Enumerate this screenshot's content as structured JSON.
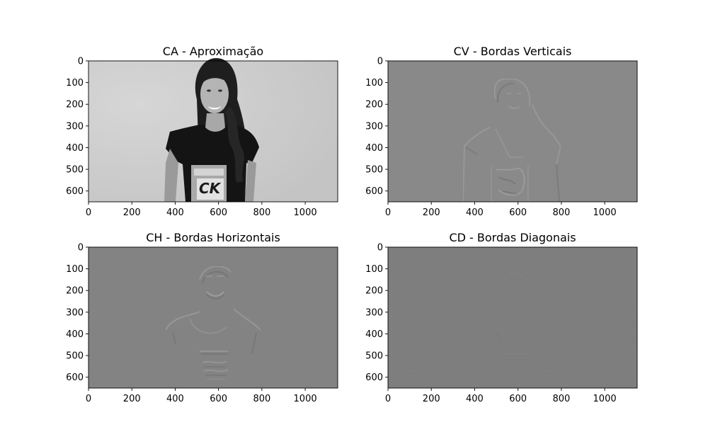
{
  "chart_data": [
    {
      "type": "heatmap",
      "title": "CA - Aproximação",
      "xlim": [
        0,
        1150
      ],
      "ylim": [
        0,
        650
      ],
      "y_inverted": true,
      "x_ticks": [
        0,
        200,
        400,
        600,
        800,
        1000
      ],
      "y_ticks": [
        0,
        100,
        200,
        300,
        400,
        500,
        600
      ],
      "colormap": "gray",
      "background_color": "#c8c8c8",
      "content": "grayscale photo of a smiling woman with long dark curly hair wearing a black t-shirt with a printed graphic, light grey background"
    },
    {
      "type": "heatmap",
      "title": "CV - Bordas Verticais",
      "xlim": [
        0,
        1150
      ],
      "ylim": [
        0,
        650
      ],
      "y_inverted": true,
      "x_ticks": [
        0,
        200,
        400,
        600,
        800,
        1000
      ],
      "y_ticks": [
        0,
        100,
        200,
        300,
        400,
        500,
        600
      ],
      "colormap": "gray",
      "background_color": "#898989",
      "content": "vertical edge detail coefficients, faint embossed outline of the figure"
    },
    {
      "type": "heatmap",
      "title": "CH - Bordas Horizontais",
      "xlim": [
        0,
        1150
      ],
      "ylim": [
        0,
        650
      ],
      "y_inverted": true,
      "x_ticks": [
        0,
        200,
        400,
        600,
        800,
        1000
      ],
      "y_ticks": [
        0,
        100,
        200,
        300,
        400,
        500,
        600
      ],
      "colormap": "gray",
      "background_color": "#838383",
      "content": "horizontal edge detail coefficients, faint embossed outline of the figure"
    },
    {
      "type": "heatmap",
      "title": "CD - Bordas Diagonais",
      "xlim": [
        0,
        1150
      ],
      "ylim": [
        0,
        650
      ],
      "y_inverted": true,
      "x_ticks": [
        0,
        200,
        400,
        600,
        800,
        1000
      ],
      "y_ticks": [
        0,
        100,
        200,
        300,
        400,
        500,
        600
      ],
      "colormap": "gray",
      "background_color": "#7e7e7e",
      "content": "diagonal detail coefficients, nearly uniform grey noise"
    }
  ]
}
